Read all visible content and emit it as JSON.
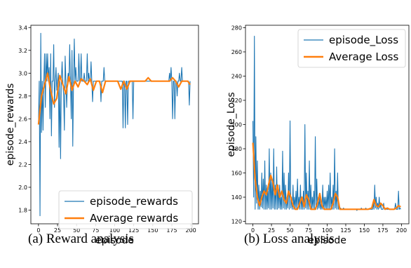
{
  "chart_data": [
    {
      "type": "line",
      "title": "",
      "xlabel": "episode",
      "ylabel": "episode_rewards",
      "xlim": [
        -10,
        210
      ],
      "ylim": [
        1.68,
        3.42
      ],
      "xticks": [
        0,
        25,
        50,
        75,
        100,
        125,
        150,
        175,
        200
      ],
      "yticks": [
        1.8,
        2.0,
        2.2,
        2.4,
        2.6,
        2.8,
        3.0,
        3.2,
        3.4
      ],
      "ytick_labels": [
        "1.8",
        "2.0",
        "2.2",
        "2.4",
        "2.6",
        "2.8",
        "3.0",
        "3.2",
        "3.4"
      ],
      "grid": false,
      "legend_position": "lower-right",
      "series": [
        {
          "name": "episode_rewards",
          "color": "#1f77b4",
          "x": [
            0,
            1,
            2,
            3,
            4,
            5,
            6,
            7,
            8,
            9,
            10,
            11,
            12,
            13,
            14,
            15,
            16,
            17,
            18,
            19,
            20,
            21,
            22,
            23,
            24,
            25,
            26,
            27,
            28,
            29,
            30,
            31,
            32,
            33,
            34,
            35,
            36,
            37,
            38,
            39,
            40,
            41,
            42,
            43,
            44,
            45,
            46,
            47,
            48,
            49,
            50,
            51,
            52,
            53,
            54,
            55,
            56,
            57,
            58,
            59,
            60,
            61,
            62,
            63,
            64,
            65,
            66,
            67,
            68,
            69,
            70,
            71,
            72,
            73,
            74,
            75,
            76,
            77,
            78,
            79,
            80,
            81,
            82,
            83,
            84,
            85,
            86,
            87,
            88,
            89,
            90,
            91,
            92,
            93,
            94,
            95,
            96,
            97,
            98,
            99,
            100,
            101,
            102,
            103,
            104,
            105,
            106,
            107,
            108,
            109,
            110,
            111,
            112,
            113,
            114,
            115,
            116,
            117,
            118,
            119,
            120,
            121,
            122,
            123,
            124,
            125,
            126,
            127,
            128,
            129,
            130,
            131,
            132,
            133,
            134,
            135,
            136,
            137,
            138,
            139,
            140,
            141,
            142,
            143,
            144,
            145,
            146,
            147,
            148,
            149,
            150,
            151,
            152,
            153,
            154,
            155,
            156,
            157,
            158,
            159,
            160,
            161,
            162,
            163,
            164,
            165,
            166,
            167,
            168,
            169,
            170,
            171,
            172,
            173,
            174,
            175,
            176,
            177,
            178,
            179,
            180,
            181,
            182,
            183,
            184,
            185,
            186,
            187,
            188,
            189,
            190,
            191,
            192,
            193,
            194,
            195,
            196,
            197,
            198,
            199
          ],
          "values": [
            2.55,
            2.93,
            1.75,
            3.35,
            2.48,
            2.93,
            2.5,
            2.93,
            3.17,
            2.7,
            3.17,
            2.93,
            3.17,
            2.93,
            3.05,
            2.6,
            3.17,
            2.45,
            2.93,
            2.93,
            3.25,
            2.7,
            2.93,
            3.05,
            2.85,
            2.93,
            3.0,
            2.35,
            2.93,
            2.25,
            2.93,
            3.1,
            2.93,
            2.8,
            2.5,
            3.15,
            2.93,
            2.7,
            2.93,
            3.0,
            2.93,
            3.25,
            2.93,
            2.6,
            3.2,
            2.36,
            2.93,
            3.3,
            2.93,
            3.05,
            2.93,
            2.93,
            2.93,
            3.17,
            2.93,
            2.93,
            3.17,
            2.93,
            2.93,
            2.93,
            3.0,
            2.93,
            2.93,
            2.93,
            3.17,
            2.93,
            3.0,
            2.93,
            2.93,
            3.1,
            2.93,
            2.75,
            2.93,
            2.93,
            2.93,
            2.93,
            2.93,
            2.93,
            2.93,
            2.93,
            2.93,
            2.93,
            2.75,
            2.93,
            2.93,
            2.93,
            3.05,
            2.93,
            2.93,
            2.93,
            2.93,
            2.93,
            2.93,
            2.93,
            2.93,
            2.93,
            2.93,
            2.93,
            2.93,
            2.93,
            2.93,
            2.93,
            2.93,
            2.93,
            2.93,
            2.93,
            2.93,
            2.93,
            2.93,
            2.93,
            2.93,
            2.52,
            2.93,
            2.93,
            2.52,
            2.93,
            2.93,
            2.55,
            2.93,
            2.93,
            2.93,
            2.93,
            2.93,
            2.93,
            2.6,
            2.93,
            2.93,
            2.93,
            2.93,
            2.93,
            2.93,
            2.93,
            2.93,
            2.93,
            2.93,
            2.93,
            2.93,
            2.93,
            2.93,
            2.93,
            2.93,
            2.93,
            2.93,
            2.93,
            2.93,
            2.93,
            2.93,
            2.93,
            2.93,
            2.93,
            2.93,
            2.93,
            2.93,
            2.93,
            2.93,
            2.93,
            2.93,
            2.93,
            2.93,
            2.93,
            2.93,
            2.93,
            2.93,
            2.93,
            2.93,
            2.93,
            2.93,
            2.93,
            2.93,
            2.93,
            2.93,
            2.93,
            3.0,
            2.93,
            3.05,
            2.93,
            2.6,
            2.93,
            2.93,
            2.6,
            2.93,
            2.93,
            2.8,
            2.93,
            2.93,
            3.0,
            2.93,
            2.93,
            3.05,
            2.93,
            2.93,
            2.93,
            2.93,
            2.93,
            2.93,
            2.93,
            2.93,
            2.93,
            2.72,
            2.93
          ]
        },
        {
          "name": "Average rewards",
          "color": "#ff7f0e",
          "x": [
            0,
            4,
            8,
            12,
            16,
            20,
            24,
            28,
            32,
            36,
            40,
            44,
            48,
            52,
            56,
            60,
            64,
            68,
            72,
            76,
            80,
            84,
            88,
            92,
            96,
            100,
            104,
            108,
            112,
            116,
            120,
            124,
            128,
            132,
            136,
            140,
            144,
            148,
            152,
            156,
            160,
            164,
            168,
            172,
            176,
            180,
            184,
            188,
            192,
            196,
            199
          ],
          "values": [
            2.55,
            2.8,
            2.9,
            3.0,
            2.85,
            2.73,
            2.78,
            2.98,
            2.9,
            2.82,
            2.97,
            2.85,
            2.93,
            2.88,
            2.95,
            2.93,
            2.9,
            2.95,
            2.85,
            2.93,
            2.93,
            2.83,
            2.93,
            2.93,
            2.93,
            2.93,
            2.93,
            2.86,
            2.93,
            2.86,
            2.93,
            2.93,
            2.93,
            2.93,
            2.93,
            2.93,
            2.96,
            2.93,
            2.93,
            2.93,
            2.93,
            2.93,
            2.93,
            2.93,
            2.96,
            2.93,
            2.88,
            2.93,
            2.93,
            2.93,
            2.9
          ]
        }
      ]
    },
    {
      "type": "line",
      "title": "",
      "xlabel": "episode",
      "ylabel": "episode_Loss",
      "xlim": [
        -10,
        210
      ],
      "ylim": [
        118,
        282
      ],
      "xticks": [
        0,
        25,
        50,
        75,
        100,
        125,
        150,
        175,
        200
      ],
      "yticks": [
        120,
        140,
        160,
        180,
        200,
        220,
        240,
        260,
        280
      ],
      "ytick_labels": [
        "120",
        "140",
        "160",
        "180",
        "200",
        "220",
        "240",
        "260",
        "280"
      ],
      "grid": false,
      "legend_position": "upper-right",
      "series": [
        {
          "name": "episode_Loss",
          "color": "#1f77b4",
          "x": [
            0,
            1,
            2,
            3,
            4,
            5,
            6,
            7,
            8,
            9,
            10,
            11,
            12,
            13,
            14,
            15,
            16,
            17,
            18,
            19,
            20,
            21,
            22,
            23,
            24,
            25,
            26,
            27,
            28,
            29,
            30,
            31,
            32,
            33,
            34,
            35,
            36,
            37,
            38,
            39,
            40,
            41,
            42,
            43,
            44,
            45,
            46,
            47,
            48,
            49,
            50,
            51,
            52,
            53,
            54,
            55,
            56,
            57,
            58,
            59,
            60,
            61,
            62,
            63,
            64,
            65,
            66,
            67,
            68,
            69,
            70,
            71,
            72,
            73,
            74,
            75,
            76,
            77,
            78,
            79,
            80,
            81,
            82,
            83,
            84,
            85,
            86,
            87,
            88,
            89,
            90,
            91,
            92,
            93,
            94,
            95,
            96,
            97,
            98,
            99,
            100,
            101,
            102,
            103,
            104,
            105,
            106,
            107,
            108,
            109,
            110,
            111,
            112,
            113,
            114,
            115,
            116,
            117,
            118,
            119,
            120,
            121,
            122,
            123,
            124,
            125,
            126,
            127,
            128,
            129,
            130,
            131,
            132,
            133,
            134,
            135,
            136,
            137,
            138,
            139,
            140,
            141,
            142,
            143,
            144,
            145,
            146,
            147,
            148,
            149,
            150,
            151,
            152,
            153,
            154,
            155,
            156,
            157,
            158,
            159,
            160,
            161,
            162,
            163,
            164,
            165,
            166,
            167,
            168,
            169,
            170,
            171,
            172,
            173,
            174,
            175,
            176,
            177,
            178,
            179,
            180,
            181,
            182,
            183,
            184,
            185,
            186,
            187,
            188,
            189,
            190,
            191,
            192,
            193,
            194,
            195,
            196,
            197,
            198,
            199
          ],
          "values": [
            203,
            140,
            273,
            130,
            190,
            135,
            170,
            130,
            150,
            130,
            145,
            132,
            160,
            131,
            155,
            130,
            170,
            130,
            150,
            130,
            145,
            131,
            180,
            130,
            160,
            130,
            155,
            131,
            180,
            130,
            150,
            130,
            165,
            130,
            150,
            131,
            150,
            130,
            140,
            130,
            178,
            131,
            160,
            130,
            150,
            130,
            140,
            131,
            160,
            130,
            203,
            131,
            140,
            130,
            150,
            130,
            140,
            131,
            145,
            130,
            155,
            131,
            140,
            130,
            150,
            130,
            140,
            130,
            145,
            130,
            200,
            131,
            160,
            130,
            145,
            130,
            170,
            130,
            150,
            130,
            140,
            131,
            145,
            130,
            190,
            130,
            155,
            130,
            140,
            131,
            140,
            130,
            135,
            130,
            150,
            130,
            140,
            131,
            140,
            130,
            145,
            130,
            150,
            130,
            160,
            131,
            140,
            130,
            150,
            130,
            180,
            131,
            145,
            130,
            160,
            130,
            135,
            130,
            131,
            130,
            130,
            130,
            131,
            130,
            130,
            130,
            130,
            130,
            130,
            130,
            130,
            130,
            130,
            130,
            130,
            130,
            130,
            130,
            130,
            130,
            129,
            130,
            130,
            130,
            130,
            130,
            131,
            130,
            130,
            130,
            130,
            130,
            131,
            130,
            130,
            130,
            130,
            130,
            130,
            130,
            130,
            130,
            135,
            130,
            150,
            131,
            140,
            130,
            135,
            130,
            140,
            131,
            135,
            130,
            130,
            130,
            135,
            130,
            130,
            131,
            130,
            130,
            130,
            130,
            130,
            130,
            130,
            130,
            130,
            130,
            130,
            131,
            135,
            130,
            130,
            130,
            145,
            130,
            131,
            130
          ]
        },
        {
          "name": "Average Loss",
          "color": "#ff7f0e",
          "x": [
            0,
            3,
            6,
            9,
            12,
            15,
            18,
            21,
            24,
            27,
            30,
            33,
            36,
            39,
            42,
            45,
            48,
            51,
            54,
            57,
            60,
            63,
            66,
            69,
            72,
            75,
            78,
            81,
            84,
            87,
            90,
            93,
            96,
            99,
            102,
            105,
            108,
            111,
            114,
            117,
            120,
            125,
            130,
            135,
            140,
            145,
            150,
            155,
            160,
            163,
            166,
            169,
            172,
            175,
            178,
            181,
            184,
            187,
            190,
            193,
            196,
            199
          ],
          "values": [
            185,
            155,
            140,
            133,
            140,
            145,
            142,
            150,
            158,
            152,
            142,
            150,
            140,
            145,
            138,
            135,
            145,
            140,
            133,
            130,
            130,
            135,
            140,
            132,
            142,
            138,
            130,
            130,
            130,
            135,
            143,
            133,
            130,
            130,
            130,
            130,
            135,
            143,
            140,
            130,
            130,
            130,
            130,
            130,
            130,
            130,
            130,
            130,
            131,
            138,
            133,
            132,
            135,
            133,
            130,
            131,
            130,
            130,
            130,
            131,
            133,
            132
          ]
        }
      ]
    }
  ],
  "captions": {
    "a": "(a) Reward analysis",
    "b": "(b) Loss analysis"
  }
}
